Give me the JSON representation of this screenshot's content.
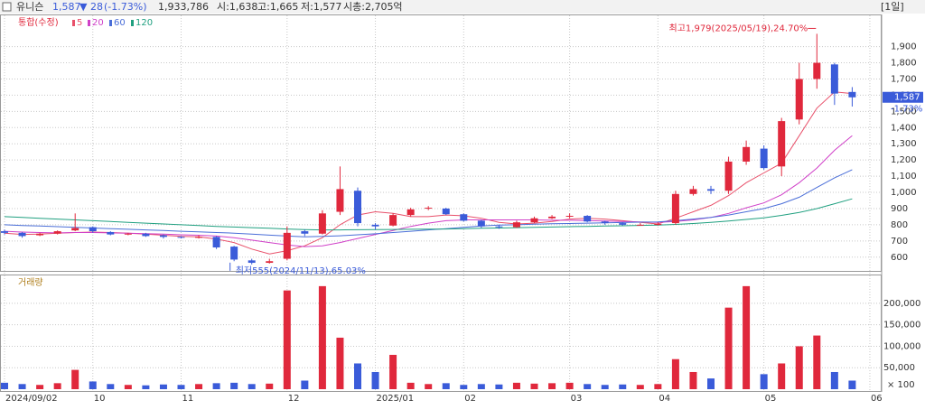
{
  "header": {
    "name": "유니슨",
    "price": "1,587",
    "change": "▼ 28",
    "change_pct": "(-1.73%)",
    "volume": "1,933,786",
    "open": "시:1,638",
    "high": "고:1,665",
    "low": "저:1,577",
    "market_cap": "시총:2,705억",
    "period": "[1일]"
  },
  "chart_data": [
    {
      "type": "candlestick",
      "legend_title": "통합(수정)",
      "open": [
        760,
        750,
        735,
        745,
        765,
        785,
        755,
        740,
        745,
        735,
        725,
        720,
        725,
        665,
        580,
        565,
        590,
        760,
        745,
        880,
        1010,
        800,
        795,
        860,
        900,
        900,
        865,
        825,
        790,
        785,
        815,
        840,
        850,
        855,
        820,
        810,
        800,
        800,
        810,
        990,
        1020,
        1010,
        1190,
        1270,
        1160,
        1450,
        1700,
        1790,
        1620,
        null
      ],
      "high": [
        770,
        755,
        750,
        765,
        870,
        790,
        760,
        750,
        750,
        740,
        730,
        735,
        730,
        670,
        590,
        590,
        790,
        770,
        890,
        1160,
        1030,
        810,
        870,
        905,
        915,
        905,
        870,
        830,
        800,
        825,
        850,
        860,
        870,
        860,
        825,
        815,
        810,
        815,
        1010,
        1040,
        1040,
        1220,
        1320,
        1290,
        1460,
        1800,
        1979,
        1800,
        1650,
        null
      ],
      "low": [
        740,
        720,
        730,
        740,
        760,
        750,
        735,
        735,
        725,
        715,
        715,
        715,
        650,
        575,
        555,
        560,
        580,
        730,
        740,
        860,
        790,
        770,
        790,
        850,
        890,
        860,
        820,
        780,
        775,
        780,
        810,
        835,
        840,
        815,
        800,
        795,
        795,
        795,
        800,
        980,
        990,
        990,
        1170,
        1140,
        1100,
        1420,
        1640,
        1540,
        1530,
        null
      ],
      "close": [
        750,
        730,
        745,
        760,
        780,
        760,
        740,
        745,
        730,
        725,
        720,
        725,
        660,
        585,
        565,
        575,
        750,
        745,
        870,
        1020,
        810,
        790,
        860,
        895,
        905,
        865,
        825,
        790,
        785,
        815,
        840,
        850,
        855,
        820,
        810,
        800,
        800,
        805,
        990,
        1020,
        1010,
        1190,
        1280,
        1150,
        1440,
        1700,
        1800,
        1610,
        1587,
        null
      ],
      "up_color": "#e0283c",
      "down_color": "#3a5bd9",
      "series": [
        {
          "name": "5",
          "color": "#e8506a",
          "values": [
            748,
            740,
            742,
            748,
            752,
            755,
            752,
            748,
            742,
            735,
            728,
            725,
            712,
            690,
            650,
            620,
            640,
            670,
            720,
            800,
            860,
            880,
            870,
            850,
            850,
            860,
            855,
            840,
            815,
            805,
            810,
            820,
            835,
            840,
            835,
            825,
            815,
            805,
            840,
            880,
            920,
            980,
            1060,
            1120,
            1180,
            1350,
            1520,
            1620,
            1610,
            null
          ]
        },
        {
          "name": "20",
          "color": "#d040c8",
          "values": [
            760,
            755,
            752,
            750,
            752,
            752,
            750,
            748,
            745,
            742,
            738,
            735,
            730,
            720,
            705,
            690,
            675,
            665,
            670,
            690,
            715,
            740,
            765,
            790,
            810,
            825,
            830,
            830,
            830,
            830,
            830,
            828,
            828,
            826,
            823,
            820,
            818,
            815,
            820,
            830,
            845,
            870,
            905,
            935,
            985,
            1060,
            1150,
            1260,
            1350,
            null
          ]
        },
        {
          "name": "60",
          "color": "#4a6ed8",
          "values": [
            800,
            795,
            792,
            788,
            784,
            780,
            776,
            772,
            768,
            764,
            760,
            756,
            752,
            748,
            742,
            736,
            730,
            726,
            728,
            732,
            738,
            744,
            752,
            760,
            768,
            776,
            784,
            792,
            798,
            800,
            803,
            806,
            808,
            810,
            812,
            814,
            816,
            818,
            825,
            835,
            845,
            860,
            880,
            900,
            930,
            970,
            1030,
            1090,
            1140,
            null
          ]
        },
        {
          "name": "120",
          "color": "#20a080",
          "values": [
            850,
            845,
            840,
            835,
            830,
            825,
            820,
            815,
            810,
            805,
            800,
            795,
            790,
            786,
            782,
            778,
            774,
            770,
            768,
            768,
            769,
            770,
            771,
            772,
            773,
            774,
            776,
            778,
            780,
            782,
            784,
            786,
            788,
            790,
            792,
            794,
            796,
            798,
            802,
            808,
            815,
            823,
            833,
            843,
            858,
            876,
            900,
            930,
            960,
            null
          ]
        }
      ],
      "annotations": {
        "high": "최고1,979(2025/05/19),24.70%",
        "low": "최저555(2024/11/13),65.03%"
      },
      "price_tag": "1,587",
      "change_tag": "-1.73%",
      "ylim": [
        515,
        2093
      ],
      "yticks": [
        {
          "value": 600,
          "label": "600"
        },
        {
          "value": 700,
          "label": "700"
        },
        {
          "value": 800,
          "label": "800"
        },
        {
          "value": 900,
          "label": "900"
        },
        {
          "value": 1000,
          "label": "1,000"
        },
        {
          "value": 1100,
          "label": "1,100"
        },
        {
          "value": 1200,
          "label": "1,200"
        },
        {
          "value": 1300,
          "label": "1,300"
        },
        {
          "value": 1400,
          "label": "1,400"
        },
        {
          "value": 1500,
          "label": "1,500"
        },
        {
          "value": 1600,
          "label": "1,600"
        },
        {
          "value": 1700,
          "label": "1,700"
        },
        {
          "value": 1800,
          "label": "1,800"
        },
        {
          "value": 1900,
          "label": "1,900"
        }
      ],
      "grid": true
    },
    {
      "type": "bar",
      "title": "거래량",
      "unit_label": "× 100",
      "categories": [
        "2024/09/02",
        null,
        null,
        null,
        null,
        "10",
        null,
        null,
        null,
        null,
        "11",
        null,
        null,
        null,
        null,
        null,
        "12",
        null,
        null,
        null,
        null,
        "2025/01",
        null,
        null,
        null,
        null,
        "02",
        null,
        null,
        null,
        null,
        null,
        "03",
        null,
        null,
        null,
        null,
        "04",
        null,
        null,
        null,
        null,
        null,
        "05",
        null,
        null,
        null,
        null,
        null,
        "06"
      ],
      "values": [
        15000,
        12000,
        10000,
        14000,
        45000,
        18000,
        12000,
        10000,
        9000,
        11000,
        10000,
        12000,
        14000,
        15000,
        12000,
        13000,
        230000,
        20000,
        240000,
        120000,
        60000,
        40000,
        80000,
        15000,
        12000,
        14000,
        10000,
        12000,
        11000,
        15000,
        13000,
        14000,
        15000,
        12000,
        10000,
        11000,
        10000,
        12000,
        70000,
        40000,
        25000,
        190000,
        240000,
        35000,
        60000,
        100000,
        125000,
        40000,
        20000,
        null
      ],
      "ylim": [
        0,
        265000
      ],
      "yticks": [
        {
          "value": 50000,
          "label": "50,000"
        },
        {
          "value": 100000,
          "label": "100,000"
        },
        {
          "value": 150000,
          "label": "150,000"
        },
        {
          "value": 200000,
          "label": "200,000"
        }
      ],
      "grid": true
    }
  ]
}
